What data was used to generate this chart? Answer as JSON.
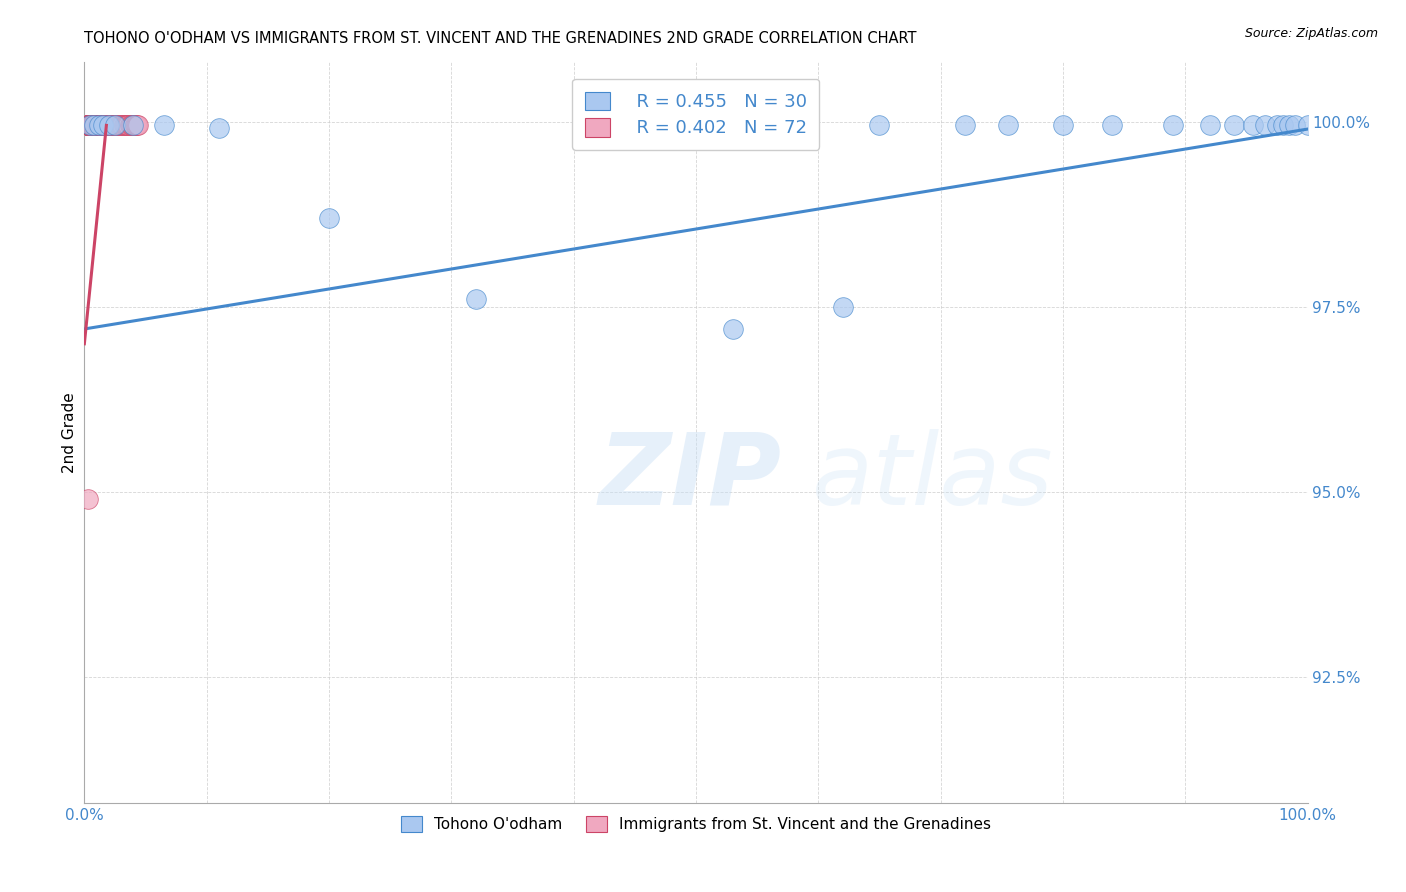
{
  "title": "TOHONO O'ODHAM VS IMMIGRANTS FROM ST. VINCENT AND THE GRENADINES 2ND GRADE CORRELATION CHART",
  "source": "Source: ZipAtlas.com",
  "ylabel": "2nd Grade",
  "xlim": [
    0.0,
    1.0
  ],
  "ylim": [
    0.908,
    1.008
  ],
  "yticks": [
    0.925,
    0.95,
    0.975,
    1.0
  ],
  "ytick_labels": [
    "92.5%",
    "95.0%",
    "97.5%",
    "100.0%"
  ],
  "xticks": [
    0.0,
    0.1,
    0.2,
    0.3,
    0.4,
    0.5,
    0.6,
    0.7,
    0.8,
    0.9,
    1.0
  ],
  "xtick_labels": [
    "0.0%",
    "",
    "",
    "",
    "",
    "",
    "",
    "",
    "",
    "",
    "100.0%"
  ],
  "blue_color": "#aac8f0",
  "pink_color": "#f0a8c0",
  "line_color": "#4488cc",
  "pink_line_color": "#cc4466",
  "legend_r_blue": "R = 0.455",
  "legend_n_blue": "N = 30",
  "legend_r_pink": "R = 0.402",
  "legend_n_pink": "N = 72",
  "legend_label_blue": "Tohono O'odham",
  "legend_label_pink": "Immigrants from St. Vincent and the Grenadines",
  "blue_x": [
    0.005,
    0.008,
    0.012,
    0.015,
    0.02,
    0.025,
    0.04,
    0.065,
    0.09,
    0.14,
    0.2,
    0.32,
    0.56,
    0.62,
    0.65,
    0.72,
    0.755,
    0.8,
    0.84,
    0.87,
    0.9,
    0.92,
    0.94,
    0.955,
    0.965,
    0.975,
    0.98,
    0.985,
    0.99,
    1.0
  ],
  "blue_y": [
    0.9995,
    0.9995,
    0.9995,
    0.9995,
    0.9995,
    0.9995,
    0.9995,
    0.9995,
    0.9995,
    0.9995,
    0.9995,
    0.9995,
    0.9995,
    0.9995,
    0.9995,
    0.9995,
    0.9995,
    0.9995,
    0.9995,
    0.9995,
    0.9995,
    0.9995,
    0.9995,
    0.9995,
    0.9995,
    0.9995,
    0.9995,
    0.9995,
    0.9995,
    0.9995
  ],
  "blue_x_scatter": [
    0.005,
    0.008,
    0.012,
    0.015,
    0.02,
    0.025,
    0.04,
    0.065,
    0.11,
    0.2,
    0.32,
    0.49,
    0.53,
    0.57,
    0.62,
    0.65,
    0.72,
    0.755,
    0.8,
    0.84,
    0.89,
    0.92,
    0.94,
    0.955,
    0.965,
    0.975,
    0.98,
    0.985,
    0.99,
    1.0
  ],
  "blue_y_scatter": [
    0.9995,
    0.9995,
    0.9995,
    0.9995,
    0.9995,
    0.9995,
    0.9995,
    0.9995,
    0.9992,
    0.987,
    0.976,
    0.9995,
    0.972,
    0.9995,
    0.975,
    0.9995,
    0.9995,
    0.9995,
    0.9995,
    0.9995,
    0.9995,
    0.9995,
    0.9995,
    0.9995,
    0.9995,
    0.9995,
    0.9995,
    0.9995,
    0.9995,
    0.9995
  ],
  "pink_x_scatter": [
    0.003,
    0.003,
    0.003,
    0.003,
    0.003,
    0.003,
    0.003,
    0.003,
    0.003,
    0.003,
    0.003,
    0.004,
    0.004,
    0.004,
    0.004,
    0.004,
    0.004,
    0.005,
    0.005,
    0.005,
    0.005,
    0.006,
    0.006,
    0.006,
    0.007,
    0.007,
    0.007,
    0.008,
    0.008,
    0.009,
    0.009,
    0.01,
    0.011,
    0.011,
    0.012,
    0.012,
    0.012,
    0.012,
    0.013,
    0.014,
    0.014,
    0.015,
    0.016,
    0.017,
    0.018,
    0.019,
    0.02,
    0.021,
    0.022,
    0.023,
    0.024,
    0.025,
    0.026,
    0.027,
    0.028,
    0.029,
    0.03,
    0.031,
    0.032,
    0.033,
    0.034,
    0.035,
    0.036,
    0.037,
    0.038,
    0.039,
    0.04,
    0.041,
    0.042,
    0.043,
    0.044,
    0.003
  ],
  "pink_y_scatter": [
    0.9995,
    0.9995,
    0.9995,
    0.9995,
    0.9995,
    0.9995,
    0.9995,
    0.9995,
    0.9995,
    0.9995,
    0.9995,
    0.9995,
    0.9995,
    0.9995,
    0.9995,
    0.9995,
    0.9995,
    0.9995,
    0.9995,
    0.9995,
    0.9995,
    0.9995,
    0.9995,
    0.9995,
    0.9995,
    0.9995,
    0.9995,
    0.9995,
    0.9995,
    0.9995,
    0.9995,
    0.9995,
    0.9995,
    0.9995,
    0.9995,
    0.9995,
    0.9995,
    0.9995,
    0.9995,
    0.9995,
    0.9995,
    0.9995,
    0.9995,
    0.9995,
    0.9995,
    0.9995,
    0.9995,
    0.9995,
    0.9995,
    0.9995,
    0.9995,
    0.9995,
    0.9995,
    0.9995,
    0.9995,
    0.9995,
    0.9995,
    0.9995,
    0.9995,
    0.9995,
    0.9995,
    0.9995,
    0.9995,
    0.9995,
    0.9995,
    0.9995,
    0.9995,
    0.9995,
    0.9995,
    0.9995,
    0.9995,
    0.949
  ],
  "blue_trend_x": [
    0.0,
    1.0
  ],
  "blue_trend_y": [
    0.972,
    0.999
  ],
  "pink_trend_x": [
    0.0,
    0.018
  ],
  "pink_trend_y": [
    0.97,
    0.9995
  ]
}
